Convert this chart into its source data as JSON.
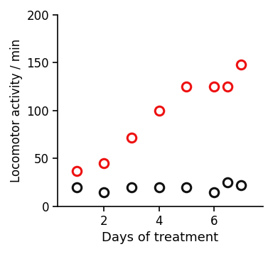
{
  "red_x": [
    1,
    2,
    3,
    4,
    5,
    6,
    6.5,
    7
  ],
  "red_y": [
    37,
    45,
    72,
    100,
    125,
    125,
    125,
    148
  ],
  "black_x": [
    1,
    2,
    3,
    4,
    5,
    6,
    6.5,
    7
  ],
  "black_y": [
    20,
    15,
    20,
    20,
    20,
    15,
    25,
    22
  ],
  "red_color": "#ee1111",
  "black_color": "#111111",
  "marker": "o",
  "marker_size": 9,
  "marker_linewidth": 2.2,
  "xlabel": "Days of treatment",
  "ylabel": "Locomotor activity / min",
  "xlim": [
    0.3,
    7.8
  ],
  "ylim": [
    0,
    200
  ],
  "xticks": [
    2,
    4,
    6
  ],
  "yticks": [
    0,
    50,
    100,
    150,
    200
  ],
  "background_color": "#ffffff",
  "xlabel_fontsize": 13,
  "ylabel_fontsize": 12,
  "tick_fontsize": 12
}
